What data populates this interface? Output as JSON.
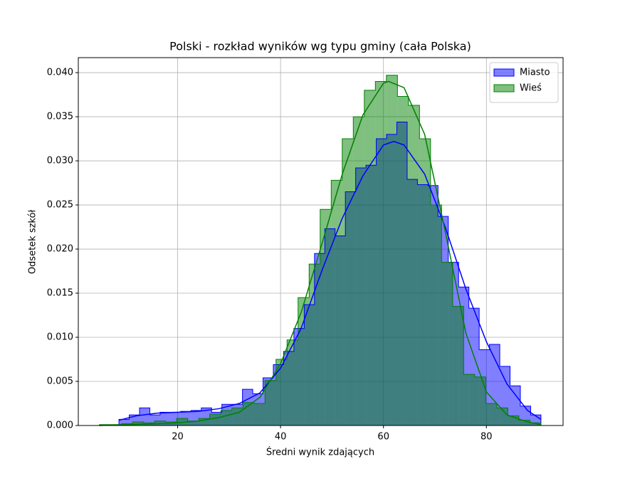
{
  "chart_data": {
    "type": "histogram",
    "title": "Polski - rozkład wyników wg typu gminy (cała Polska)",
    "xlabel": "Średni wynik zdających",
    "ylabel": "Odsetek szkół",
    "xlim": [
      0.7,
      94.9
    ],
    "ylim": [
      0,
      0.0417
    ],
    "xticks": [
      20,
      40,
      60,
      80
    ],
    "yticks": [
      {
        "value": 0,
        "label": "0.000"
      },
      0.005,
      {
        "value": 0.01,
        "label": "0.010"
      },
      0.015,
      {
        "value": 0.02,
        "label": "0.020"
      },
      0.025,
      {
        "value": 0.03,
        "label": "0.030"
      },
      0.035,
      {
        "value": 0.04,
        "label": "0.040"
      }
    ],
    "grid": true,
    "legend": "upper right",
    "series": [
      {
        "name": "Miasto",
        "color": "#0000ff",
        "bins": [
          8.6,
          10.6,
          12.6,
          14.6,
          16.6,
          18.6,
          20.6,
          22.6,
          24.6,
          26.6,
          28.6,
          30.6,
          32.6,
          34.6,
          36.6,
          38.6,
          40.6,
          42.6,
          44.6,
          46.6,
          48.6,
          50.6,
          52.6,
          54.6,
          56.6,
          58.6,
          60.6,
          62.6,
          64.6,
          66.6,
          68.6,
          70.6,
          72.6,
          74.6,
          76.6,
          78.6,
          80.6,
          82.6,
          84.6,
          86.6,
          88.6,
          90.6
        ],
        "values": [
          0.0007,
          0.0012,
          0.002,
          0.0012,
          0.0015,
          0.0015,
          0.0016,
          0.0017,
          0.002,
          0.0015,
          0.0024,
          0.0024,
          0.0041,
          0.0036,
          0.0054,
          0.0069,
          0.0084,
          0.011,
          0.0137,
          0.0195,
          0.0223,
          0.0215,
          0.0265,
          0.0292,
          0.0295,
          0.0325,
          0.033,
          0.0344,
          0.0279,
          0.0273,
          0.0272,
          0.0237,
          0.0185,
          0.0157,
          0.0133,
          0.0086,
          0.0092,
          0.0067,
          0.0045,
          0.0022,
          0.0012
        ],
        "kde_x": [
          8.6,
          12,
          16,
          20,
          24,
          28,
          32,
          36,
          40,
          44,
          48,
          52,
          56,
          60,
          62,
          64,
          68,
          72,
          76,
          80,
          84,
          88,
          90.6
        ],
        "kde": [
          0.0006,
          0.0011,
          0.0014,
          0.0015,
          0.0016,
          0.0019,
          0.0025,
          0.0037,
          0.0065,
          0.011,
          0.0175,
          0.0235,
          0.0283,
          0.0318,
          0.0322,
          0.0318,
          0.0285,
          0.0225,
          0.0155,
          0.0095,
          0.0047,
          0.0017,
          0.0007
        ]
      },
      {
        "name": "Wieś",
        "color": "#008000",
        "bins": [
          4.8,
          6.945,
          9.09,
          11.235,
          13.38,
          15.525,
          17.67,
          19.815,
          21.96,
          24.105,
          26.25,
          28.395,
          30.54,
          32.685,
          34.83,
          36.975,
          39.12,
          41.265,
          43.41,
          45.555,
          47.7,
          49.845,
          51.99,
          54.135,
          56.28,
          58.425,
          60.57,
          62.715,
          64.86,
          67.005,
          69.15,
          71.295,
          73.44,
          75.585,
          77.73,
          79.875,
          82.02,
          84.165,
          86.31,
          88.455,
          90.6
        ],
        "values": [
          0.0001,
          0.0001,
          0.0002,
          0.0004,
          0.0003,
          0.0005,
          0.0004,
          0.0008,
          0.0005,
          0.0008,
          0.0013,
          0.0017,
          0.002,
          0.0026,
          0.0025,
          0.0051,
          0.0075,
          0.0097,
          0.0145,
          0.0183,
          0.0245,
          0.0278,
          0.0325,
          0.035,
          0.038,
          0.039,
          0.0397,
          0.0373,
          0.0363,
          0.0325,
          0.025,
          0.0185,
          0.0135,
          0.0058,
          0.0055,
          0.0025,
          0.002,
          0.0011,
          0.0006,
          0.0003
        ],
        "kde_x": [
          4.8,
          10,
          16,
          20,
          24,
          28,
          32,
          36,
          40,
          44,
          48,
          52,
          56,
          60,
          61,
          64,
          68,
          72,
          76,
          80,
          84,
          88,
          90.6
        ],
        "kde": [
          0,
          0.0001,
          0.0002,
          0.0003,
          0.0005,
          0.0009,
          0.0015,
          0.0032,
          0.007,
          0.0128,
          0.0205,
          0.0285,
          0.0352,
          0.0388,
          0.039,
          0.0383,
          0.033,
          0.022,
          0.0105,
          0.0038,
          0.0012,
          0.0004,
          0.0001
        ]
      }
    ]
  }
}
